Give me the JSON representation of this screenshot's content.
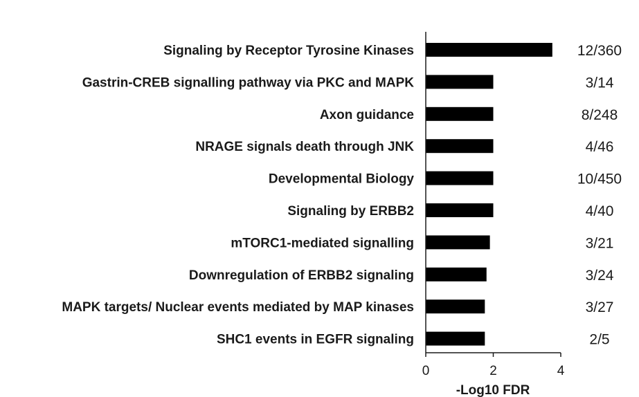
{
  "chart_data": {
    "type": "bar",
    "orientation": "horizontal",
    "categories": [
      "Signaling by Receptor Tyrosine Kinases",
      "Gastrin-CREB signalling pathway via PKC and MAPK",
      "Axon guidance",
      "NRAGE signals death through JNK",
      "Developmental Biology",
      "Signaling by ERBB2",
      "mTORC1-mediated signalling",
      "Downregulation of ERBB2 signaling",
      "MAPK targets/ Nuclear events mediated by MAP kinases",
      "SHC1 events in EGFR signaling"
    ],
    "values": [
      3.75,
      2.0,
      2.0,
      2.0,
      2.0,
      2.0,
      1.9,
      1.8,
      1.75,
      1.75
    ],
    "annotations": [
      "12/360",
      "3/14",
      "8/248",
      "4/46",
      "10/450",
      "4/40",
      "3/21",
      "3/24",
      "3/27",
      "2/5"
    ],
    "xlabel": "-Log10 FDR",
    "ylabel": "",
    "title": "",
    "xlim": [
      0,
      4
    ],
    "xticks": [
      "0",
      "2",
      "4"
    ],
    "bar_color": "#000000",
    "grid": false,
    "legend": "none"
  }
}
